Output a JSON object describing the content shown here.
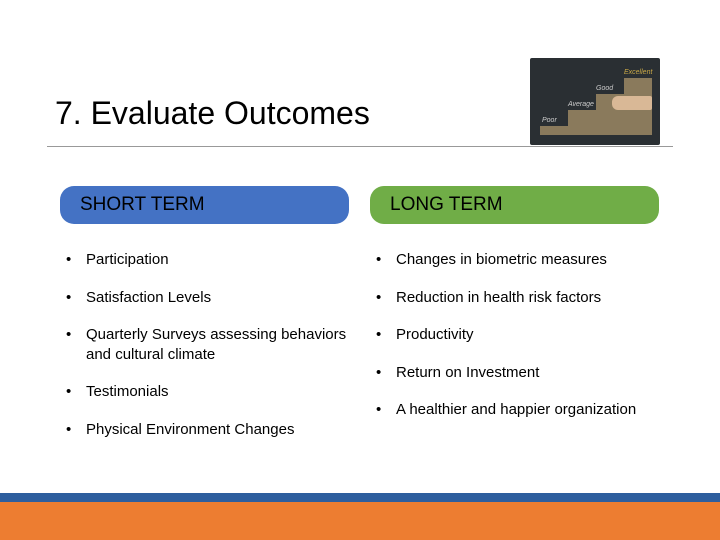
{
  "title": "7. Evaluate Outcomes",
  "corner_image": {
    "background_color": "#2a2f33",
    "step_color": "#8a7a5c",
    "labels": [
      "Poor",
      "Average",
      "Good",
      "Excellent"
    ],
    "highlight_color": "#c9a847"
  },
  "columns": {
    "left": {
      "heading": "SHORT TERM",
      "pill_color": "#4472c4",
      "items": [
        "Participation",
        "Satisfaction Levels",
        "Quarterly Surveys assessing behaviors and cultural climate",
        "Testimonials",
        "Physical Environment Changes"
      ]
    },
    "right": {
      "heading": "LONG TERM",
      "pill_color": "#70ad47",
      "items": [
        "Changes in biometric measures",
        "Reduction in health risk factors",
        "Productivity",
        "Return on Investment",
        "A healthier and happier organization"
      ]
    }
  },
  "footer": {
    "blue": "#2e5e9e",
    "orange": "#ed7d31"
  },
  "typography": {
    "title_fontsize": 32,
    "heading_fontsize": 19,
    "body_fontsize": 15
  }
}
